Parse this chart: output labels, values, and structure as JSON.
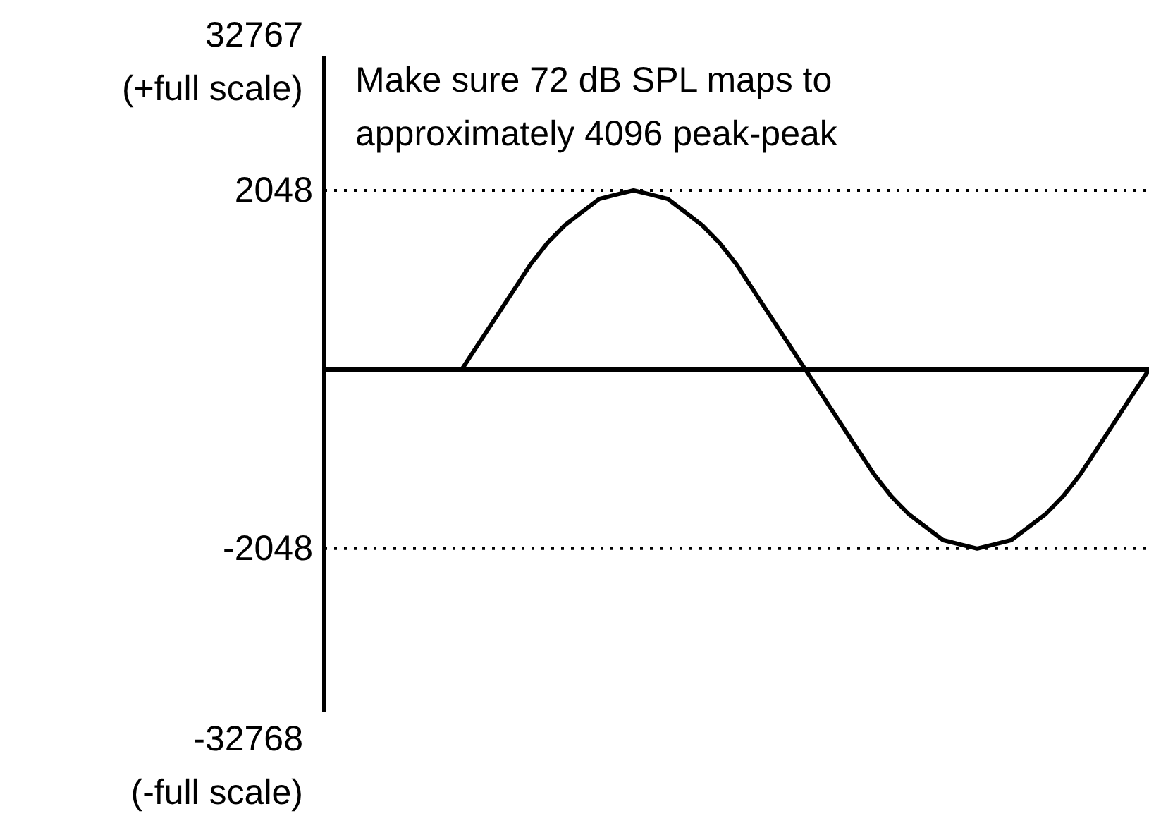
{
  "chart_data": {
    "type": "line",
    "categories": [
      null,
      null,
      null,
      null,
      null,
      null,
      null,
      null,
      null,
      null,
      null,
      null,
      null,
      null,
      null,
      null,
      null,
      null,
      null,
      null,
      null,
      null,
      null,
      null,
      null,
      null,
      null,
      null,
      null,
      null,
      null,
      null,
      null,
      null,
      null,
      null,
      null,
      null,
      null,
      null,
      null,
      null,
      null,
      null,
      null,
      null,
      null,
      null,
      null
    ],
    "series": [
      {
        "color": "#000000",
        "values": [
          null,
          null,
          null,
          null,
          null,
          null,
          null,
          null,
          0,
          300,
          600,
          900,
          1200,
          1450,
          1650,
          1800,
          1950,
          2000,
          2048,
          2000,
          1950,
          1800,
          1650,
          1450,
          1200,
          900,
          600,
          300,
          0,
          -300,
          -600,
          -900,
          -1200,
          -1450,
          -1650,
          -1800,
          -1950,
          -2000,
          -2048,
          -2000,
          -1950,
          -1800,
          -1650,
          -1450,
          -1200,
          -900,
          -600,
          -300,
          0
        ]
      }
    ],
    "ylim": [
      -3920,
      3580
    ],
    "yticks": [
      2048,
      -2048
    ],
    "tick_labels": "y",
    "grid": false,
    "legend": false,
    "marker": "none",
    "line_style": "solid",
    "ref_lines": [
      {
        "axis": "y",
        "value": 0,
        "line_style": "solid",
        "color": "#000000"
      },
      {
        "axis": "y",
        "value": 2048,
        "line_style": "dotted",
        "color": "#000000"
      },
      {
        "axis": "y",
        "value": -2048,
        "line_style": "dotted",
        "color": "#000000"
      }
    ],
    "annotations": [
      "32767\n(+full scale)",
      "Make sure 72 dB SPL maps to approximately 4096 peak-peak",
      "-32768\n(-full scale)"
    ]
  }
}
